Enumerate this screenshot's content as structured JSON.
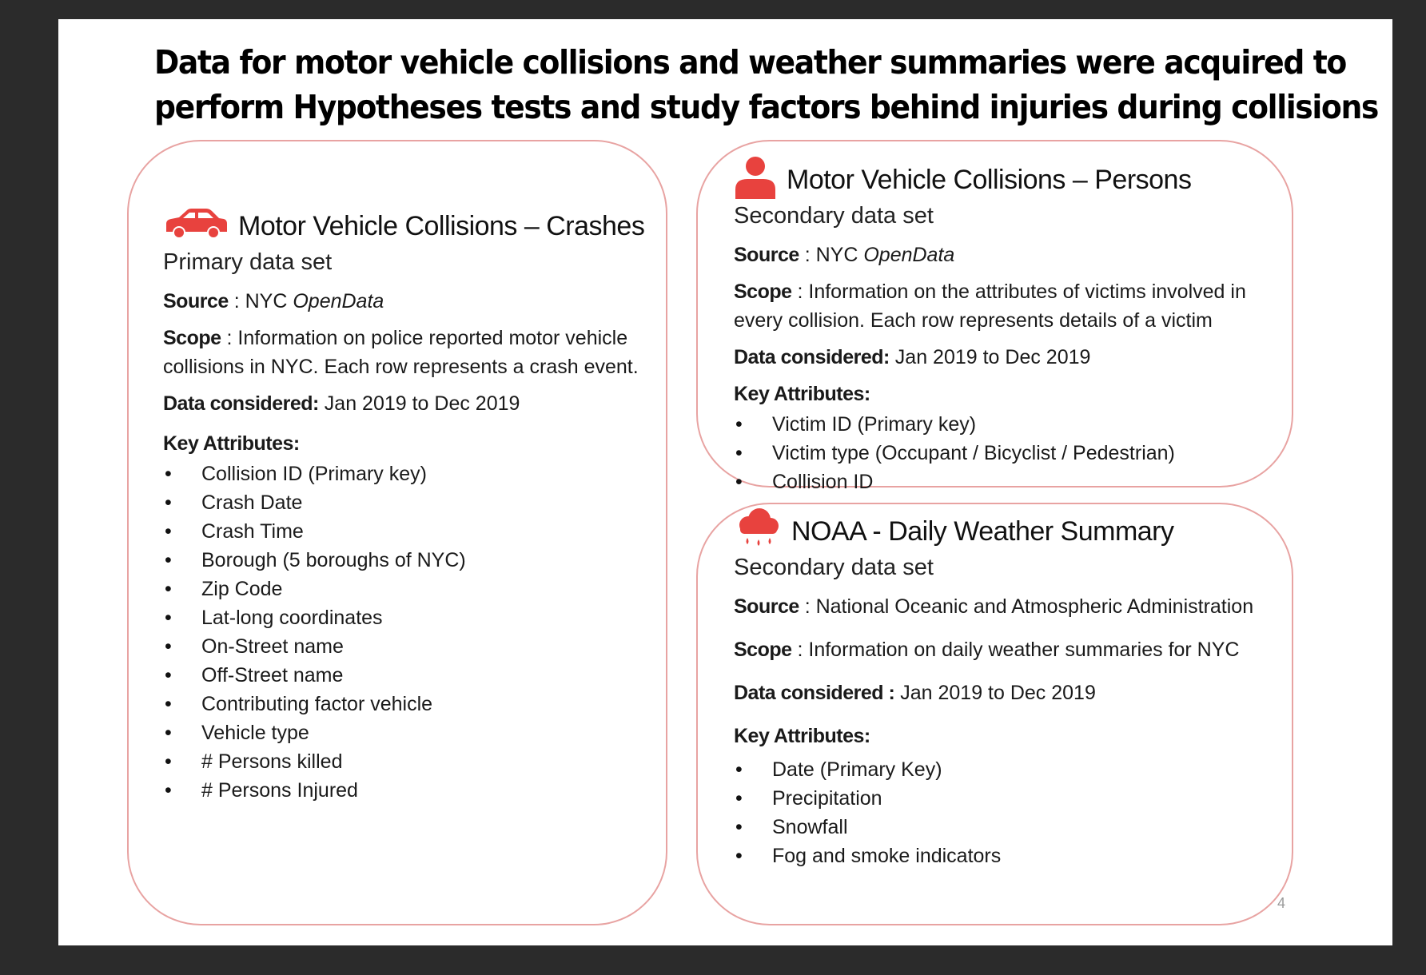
{
  "title": {
    "line1": "Data for motor vehicle collisions and weather summaries were acquired to",
    "line2": "perform Hypotheses tests and study factors behind injuries during collisions"
  },
  "colors": {
    "accent": "#e8423e",
    "border": "#e8a3a2"
  },
  "crashes": {
    "icon": "car-icon",
    "heading": "Motor Vehicle Collisions – Crashes",
    "subtitle": "Primary data set",
    "source_label": "Source",
    "source_prefix": " : NYC ",
    "source_italic": "OpenData",
    "scope_label": "Scope",
    "scope_text": " : Information on police reported motor   vehicle collisions in NYC. Each row represents a crash event.",
    "considered_label": "Data considered:",
    "considered_text": "  Jan 2019 to Dec 2019",
    "key_label": "Key Attributes:",
    "attributes": [
      "Collision ID (Primary key)",
      "Crash Date",
      "Crash Time",
      "Borough (5 boroughs of NYC)",
      "Zip Code",
      "Lat-long coordinates",
      "On-Street name",
      "Off-Street name",
      "Contributing factor vehicle",
      "Vehicle type",
      "# Persons killed",
      "# Persons Injured"
    ]
  },
  "persons": {
    "icon": "person-icon",
    "heading": "Motor Vehicle Collisions – Persons",
    "subtitle": "Secondary data set",
    "source_label": "Source",
    "source_prefix": " : NYC ",
    "source_italic": "OpenData",
    "scope_label": "Scope",
    "scope_text": " :  Information on the attributes of victims involved in every collision. Each row represents details of a victim",
    "considered_label": "Data considered:",
    "considered_text": "  Jan 2019 to Dec 2019",
    "key_label": "Key Attributes:",
    "attributes": [
      "Victim ID (Primary key)",
      "Victim type (Occupant / Bicyclist / Pedestrian)",
      "Collision ID"
    ]
  },
  "noaa": {
    "icon": "rain-cloud-icon",
    "heading": "NOAA -  Daily Weather Summary",
    "subtitle": "Secondary data set",
    "source_label": "Source",
    "source_text": " : National Oceanic and Atmospheric Administration",
    "scope_label": "Scope",
    "scope_text": " :  Information on daily weather summaries for NYC",
    "considered_label": "Data considered :",
    "considered_text": "  Jan 2019 to Dec 2019",
    "key_label": "Key Attributes:",
    "attributes": [
      "Date (Primary Key)",
      "Precipitation",
      "Snowfall",
      "Fog and smoke indicators"
    ]
  },
  "page_number": "4"
}
